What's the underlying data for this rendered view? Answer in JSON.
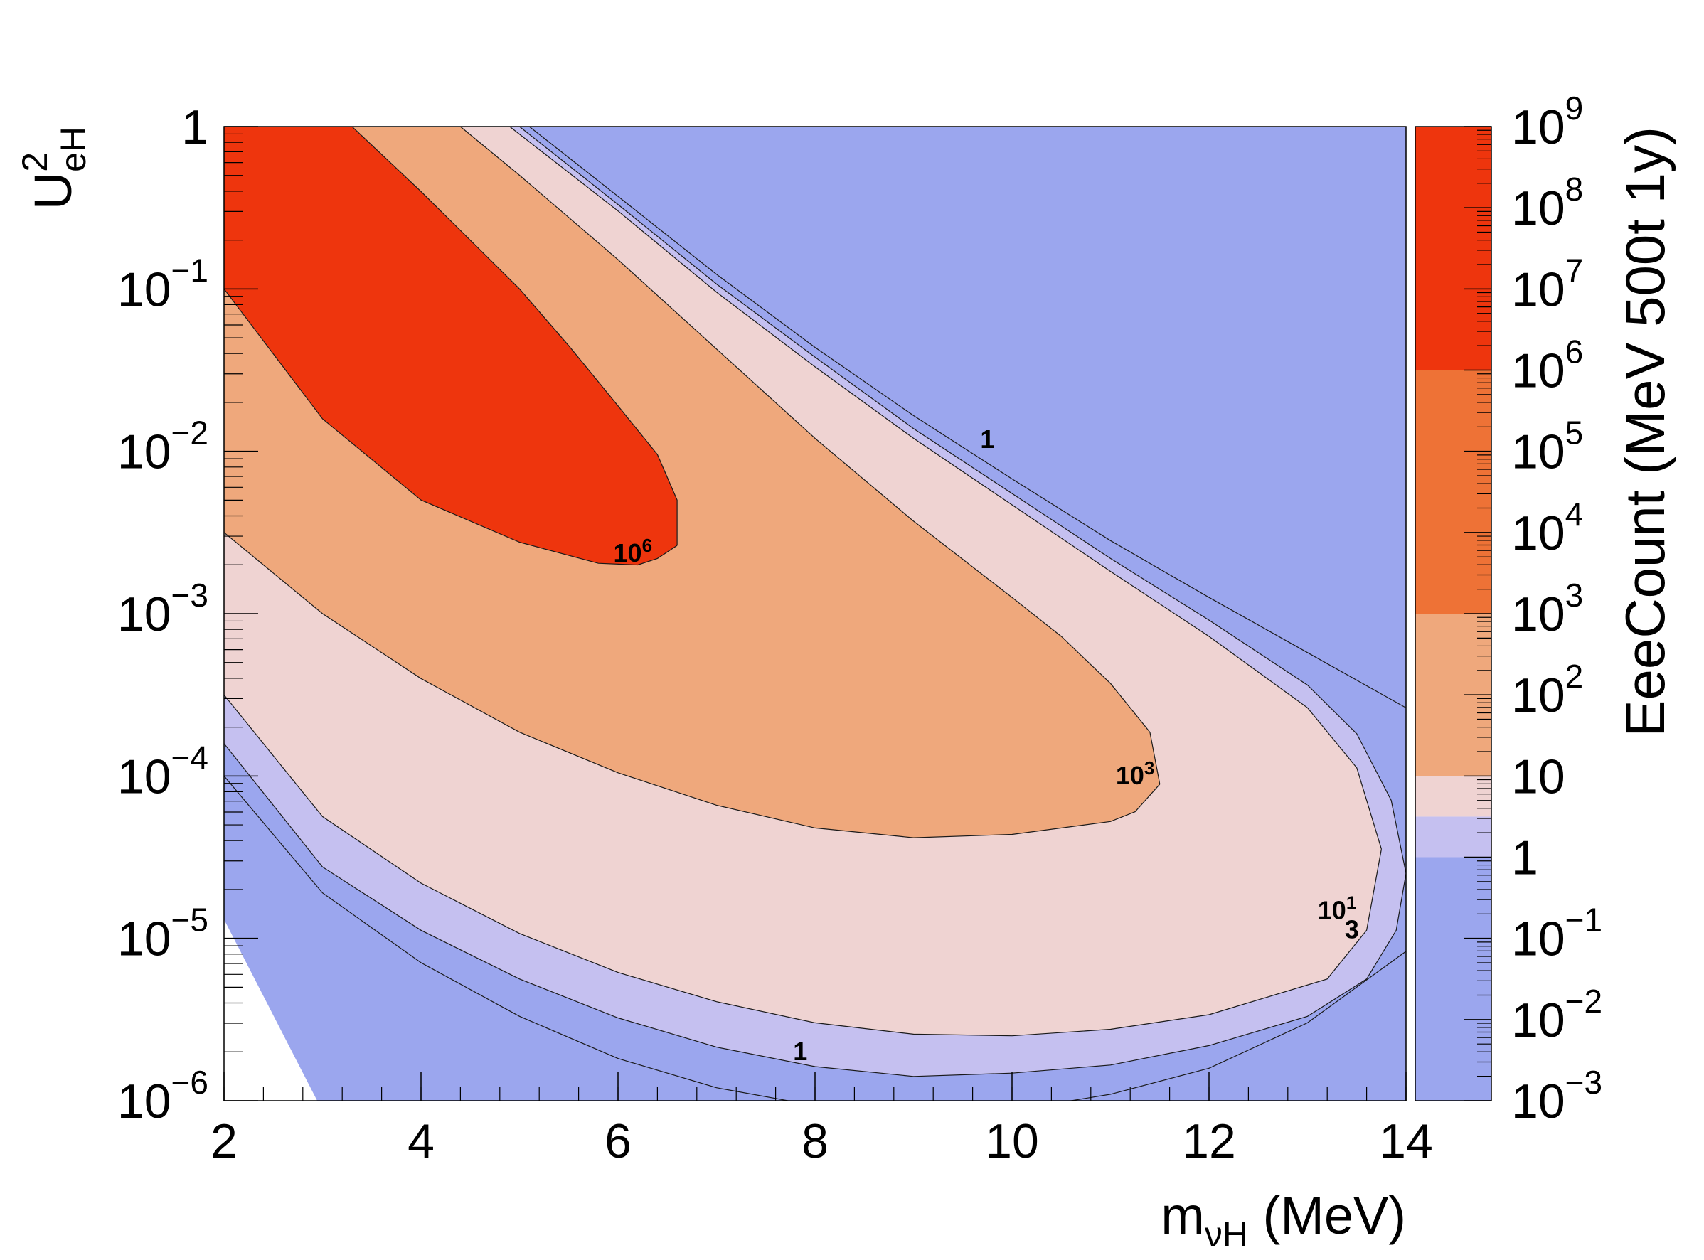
{
  "chart_data": {
    "type": "contour",
    "title": "",
    "xlabel": {
      "base": "m",
      "sub": "νH",
      "suffix": " (MeV)"
    },
    "ylabel": {
      "base": "U",
      "sup": "2",
      "sub": "eH"
    },
    "zlabel": "EeeCount (MeV 500t 1y)",
    "xlim": [
      2,
      14
    ],
    "ylim_log10": [
      -6,
      0
    ],
    "xticks": [
      {
        "value": 2,
        "label": "2"
      },
      {
        "value": 4,
        "label": "4"
      },
      {
        "value": 6,
        "label": "6"
      },
      {
        "value": 8,
        "label": "8"
      },
      {
        "value": 10,
        "label": "10"
      },
      {
        "value": 12,
        "label": "12"
      },
      {
        "value": 14,
        "label": "14"
      }
    ],
    "yticks": [
      {
        "exp": 0,
        "base": "1",
        "sup": ""
      },
      {
        "exp": -1,
        "base": "10",
        "sup": "−1"
      },
      {
        "exp": -2,
        "base": "10",
        "sup": "−2"
      },
      {
        "exp": -3,
        "base": "10",
        "sup": "−3"
      },
      {
        "exp": -4,
        "base": "10",
        "sup": "−4"
      },
      {
        "exp": -5,
        "base": "10",
        "sup": "−5"
      },
      {
        "exp": -6,
        "base": "10",
        "sup": "−6"
      }
    ],
    "zlim_log10": [
      -3,
      9
    ],
    "zticks": [
      {
        "exp": 9,
        "base": "10",
        "sup": "9"
      },
      {
        "exp": 8,
        "base": "10",
        "sup": "8"
      },
      {
        "exp": 7,
        "base": "10",
        "sup": "7"
      },
      {
        "exp": 6,
        "base": "10",
        "sup": "6"
      },
      {
        "exp": 5,
        "base": "10",
        "sup": "5"
      },
      {
        "exp": 4,
        "base": "10",
        "sup": "4"
      },
      {
        "exp": 3,
        "base": "10",
        "sup": "3"
      },
      {
        "exp": 2,
        "base": "10",
        "sup": "2"
      },
      {
        "exp": 1,
        "base": "10",
        "sup": ""
      },
      {
        "exp": 0,
        "base": "1",
        "sup": ""
      },
      {
        "exp": -1,
        "base": "10",
        "sup": "−1"
      },
      {
        "exp": -2,
        "base": "10",
        "sup": "−2"
      },
      {
        "exp": -3,
        "base": "10",
        "sup": "−3"
      }
    ],
    "color_bands": [
      {
        "from_exp": -3,
        "to_exp": 0,
        "color": "#9ba6ee"
      },
      {
        "from_exp": 0,
        "to_exp": 0.5,
        "color": "#c5c0f0"
      },
      {
        "from_exp": 0.5,
        "to_exp": 1,
        "color": "#efd3d2"
      },
      {
        "from_exp": 1,
        "to_exp": 3,
        "color": "#efa87c"
      },
      {
        "from_exp": 3,
        "to_exp": 6,
        "color": "#ee7236"
      },
      {
        "from_exp": 6,
        "to_exp": 9,
        "color": "#ee350d"
      }
    ],
    "contours": [
      {
        "level": "1",
        "color": "#9ba6ee",
        "upper": [
          [
            5.1,
            0
          ],
          [
            6,
            -0.43
          ],
          [
            7,
            -0.91
          ],
          [
            8,
            -1.36
          ],
          [
            9,
            -1.78
          ],
          [
            10,
            -2.17
          ],
          [
            11,
            -2.55
          ],
          [
            12,
            -2.9
          ],
          [
            13,
            -3.24
          ],
          [
            14,
            -3.58
          ]
        ],
        "lower": [
          [
            14,
            -5.08
          ],
          [
            13,
            -5.52
          ],
          [
            12,
            -5.8
          ],
          [
            11,
            -5.96
          ],
          [
            10,
            -6.06
          ],
          [
            9,
            -6.08
          ],
          [
            8,
            -6.03
          ],
          [
            7,
            -5.92
          ],
          [
            6,
            -5.74
          ],
          [
            5,
            -5.48
          ],
          [
            4,
            -5.15
          ],
          [
            3,
            -4.72
          ],
          [
            2,
            -4.0
          ]
        ]
      },
      {
        "level": "3",
        "color": "#c5c0f0",
        "upper": [
          [
            5.0,
            0
          ],
          [
            6,
            -0.48
          ],
          [
            7,
            -0.97
          ],
          [
            8,
            -1.42
          ],
          [
            9,
            -1.86
          ],
          [
            10,
            -2.26
          ],
          [
            11,
            -2.66
          ],
          [
            12,
            -3.04
          ],
          [
            13,
            -3.44
          ],
          [
            13.5,
            -3.74
          ],
          [
            13.85,
            -4.15
          ],
          [
            14,
            -4.6
          ]
        ],
        "lower": [
          [
            14,
            -4.6
          ],
          [
            13.9,
            -4.95
          ],
          [
            13.6,
            -5.25
          ],
          [
            13,
            -5.48
          ],
          [
            12,
            -5.66
          ],
          [
            11,
            -5.78
          ],
          [
            10,
            -5.83
          ],
          [
            9,
            -5.85
          ],
          [
            8,
            -5.79
          ],
          [
            7,
            -5.67
          ],
          [
            6,
            -5.49
          ],
          [
            5,
            -5.25
          ],
          [
            4,
            -4.95
          ],
          [
            3,
            -4.56
          ],
          [
            2,
            -3.8
          ]
        ]
      },
      {
        "level": "10",
        "color": "#efd3d2",
        "upper": [
          [
            4.9,
            0
          ],
          [
            6,
            -0.52
          ],
          [
            7,
            -1.02
          ],
          [
            8,
            -1.48
          ],
          [
            9,
            -1.92
          ],
          [
            10,
            -2.33
          ],
          [
            11,
            -2.74
          ],
          [
            12,
            -3.14
          ],
          [
            13,
            -3.58
          ],
          [
            13.5,
            -3.95
          ],
          [
            13.75,
            -4.45
          ]
        ],
        "lower": [
          [
            13.75,
            -4.45
          ],
          [
            13.6,
            -4.95
          ],
          [
            13.2,
            -5.25
          ],
          [
            12,
            -5.47
          ],
          [
            11,
            -5.56
          ],
          [
            10,
            -5.6
          ],
          [
            9,
            -5.59
          ],
          [
            8,
            -5.52
          ],
          [
            7,
            -5.39
          ],
          [
            6,
            -5.21
          ],
          [
            5,
            -4.97
          ],
          [
            4,
            -4.66
          ],
          [
            3,
            -4.25
          ],
          [
            2,
            -3.5
          ]
        ]
      },
      {
        "level": "10³",
        "color": "#efa87c",
        "upper": [
          [
            4.4,
            0
          ],
          [
            5,
            -0.3
          ],
          [
            6,
            -0.82
          ],
          [
            7,
            -1.37
          ],
          [
            8,
            -1.92
          ],
          [
            9,
            -2.43
          ],
          [
            10,
            -2.9
          ],
          [
            10.5,
            -3.14
          ],
          [
            11,
            -3.43
          ],
          [
            11.4,
            -3.73
          ],
          [
            11.5,
            -4.05
          ]
        ],
        "lower": [
          [
            11.5,
            -4.05
          ],
          [
            11.25,
            -4.22
          ],
          [
            11,
            -4.28
          ],
          [
            10,
            -4.36
          ],
          [
            9,
            -4.38
          ],
          [
            8,
            -4.32
          ],
          [
            7,
            -4.18
          ],
          [
            6,
            -3.98
          ],
          [
            5,
            -3.73
          ],
          [
            4,
            -3.4
          ],
          [
            3,
            -3.0
          ],
          [
            2,
            -2.5
          ]
        ]
      },
      {
        "level": "10⁶",
        "color": "#ee350d",
        "upper": [
          [
            3.3,
            0
          ],
          [
            4,
            -0.4
          ],
          [
            5,
            -1.0
          ],
          [
            5.5,
            -1.35
          ],
          [
            6,
            -1.72
          ],
          [
            6.4,
            -2.02
          ],
          [
            6.6,
            -2.3
          ],
          [
            6.6,
            -2.58
          ]
        ],
        "lower": [
          [
            6.6,
            -2.58
          ],
          [
            6.4,
            -2.66
          ],
          [
            6.2,
            -2.7
          ],
          [
            5.8,
            -2.69
          ],
          [
            5,
            -2.56
          ],
          [
            4,
            -2.3
          ],
          [
            3,
            -1.8
          ],
          [
            2,
            -1.0
          ]
        ]
      }
    ],
    "contour_labels": [
      {
        "text": "1",
        "x": 9.75,
        "y_log10": -1.98
      },
      {
        "text": "10",
        "sup": "6",
        "x": 6.15,
        "y_log10": -2.68
      },
      {
        "text": "10",
        "sup": "3",
        "x": 11.25,
        "y_log10": -4.05
      },
      {
        "text": "10",
        "sup": "1",
        "x": 13.3,
        "y_log10": -4.88
      },
      {
        "text": "3",
        "x": 13.45,
        "y_log10": -5.0
      },
      {
        "text": "1",
        "x": 7.85,
        "y_log10": -5.75
      }
    ]
  }
}
